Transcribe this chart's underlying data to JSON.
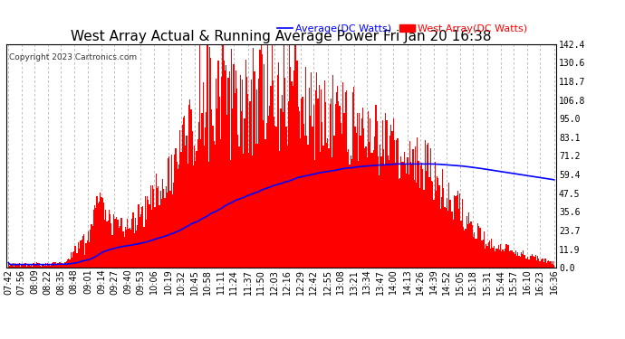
{
  "title": "West Array Actual & Running Average Power Fri Jan 20 16:38",
  "copyright": "Copyright 2023 Cartronics.com",
  "legend_average": "Average(DC Watts)",
  "legend_west": "West Array(DC Watts)",
  "yticks": [
    0.0,
    11.9,
    23.7,
    35.6,
    47.5,
    59.4,
    71.2,
    83.1,
    95.0,
    106.8,
    118.7,
    130.6,
    142.4
  ],
  "bg_color": "#ffffff",
  "grid_color": "#b0b0b0",
  "bar_color": "#ff0000",
  "avg_color": "#0000ff",
  "west_color": "#ff0000",
  "title_color": "#000000",
  "title_fontsize": 11,
  "tick_fontsize": 7,
  "legend_fontsize": 8,
  "xlabel_rotation": 90,
  "x_labels": [
    "07:42",
    "07:56",
    "08:09",
    "08:22",
    "08:35",
    "08:48",
    "09:01",
    "09:14",
    "09:27",
    "09:40",
    "09:53",
    "10:06",
    "10:19",
    "10:32",
    "10:45",
    "10:58",
    "11:11",
    "11:24",
    "11:37",
    "11:50",
    "12:03",
    "12:16",
    "12:29",
    "12:42",
    "12:55",
    "13:08",
    "13:21",
    "13:34",
    "13:47",
    "14:00",
    "14:13",
    "14:26",
    "14:39",
    "14:52",
    "15:05",
    "15:18",
    "15:31",
    "15:44",
    "15:57",
    "16:10",
    "16:23",
    "16:36"
  ],
  "ymax": 142.4,
  "ymin": 0.0
}
